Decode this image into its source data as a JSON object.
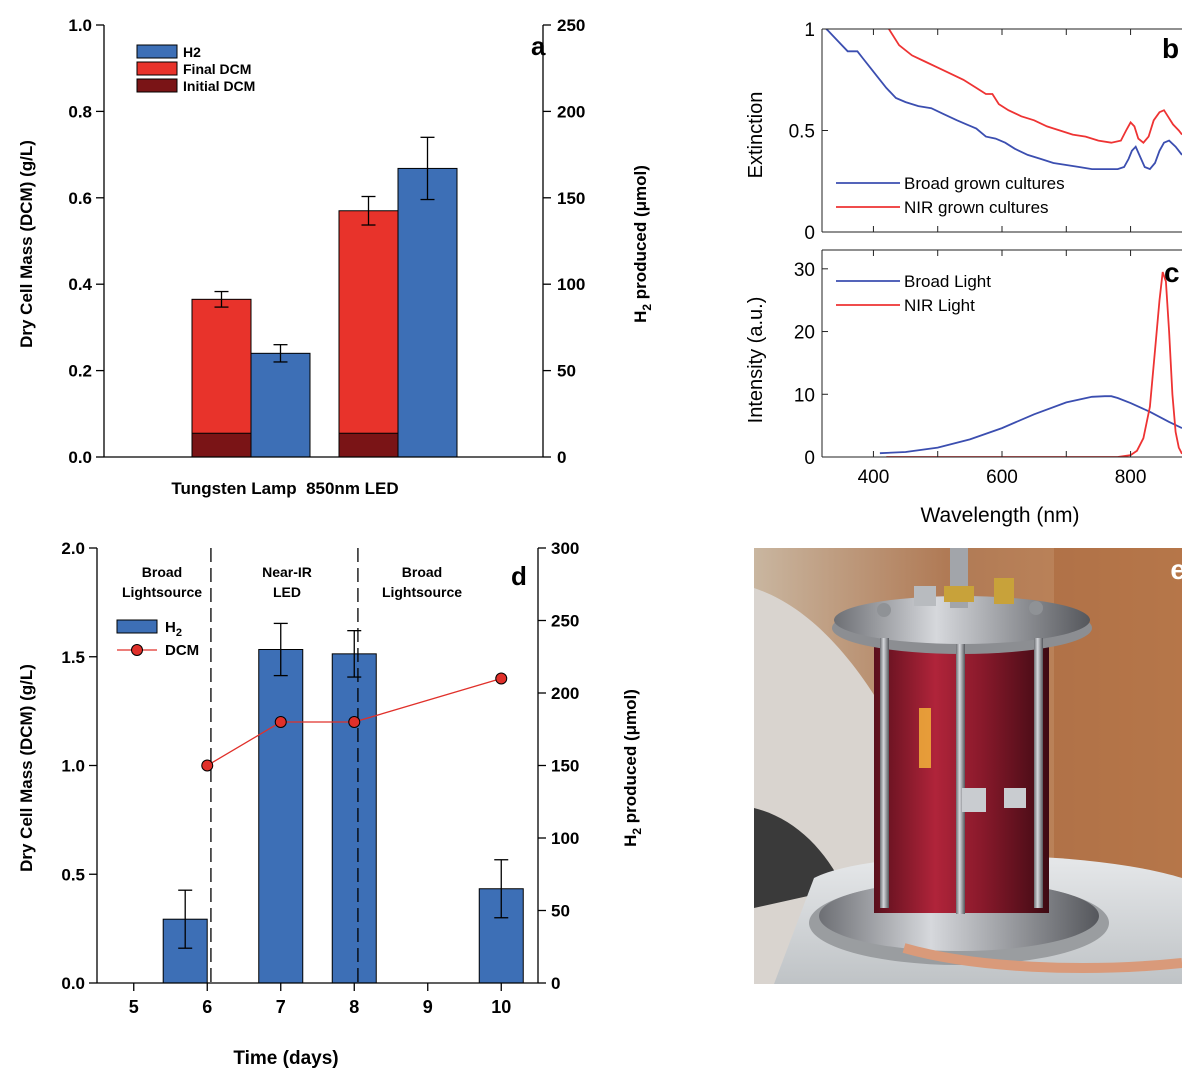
{
  "colors": {
    "h2_blue": "#3d6fb6",
    "final_dcm_red": "#e8332b",
    "initial_dcm_darkred": "#7a1416",
    "line_blue": "#3b4eb0",
    "line_red": "#ee3333",
    "dcm_marker": "#e0302a"
  },
  "chart_data": [
    {
      "panel": "a",
      "type": "bar",
      "categories": [
        "Tungsten Lamp",
        "850nm LED"
      ],
      "xlabel": "Tungsten Lamp  850nm LED",
      "ylabel": "Dry Cell Mass (DCM) (g/L)",
      "ylabel2_main": "H",
      "ylabel2_sub": "2",
      "ylabel2_rest": " produced (μmol)",
      "ylim": [
        0,
        1.0
      ],
      "y2lim": [
        0,
        250
      ],
      "yticks": [
        "0.0",
        "0.2",
        "0.4",
        "0.6",
        "0.8",
        "1.0"
      ],
      "y2ticks": [
        "0",
        "50",
        "100",
        "150",
        "200",
        "250"
      ],
      "legend": [
        "H2",
        "Final DCM",
        "Initial DCM"
      ],
      "series": [
        {
          "name": "Initial DCM",
          "axis": "left",
          "values": [
            0.055,
            0.055
          ]
        },
        {
          "name": "Final DCM",
          "axis": "left",
          "values": [
            0.365,
            0.57
          ],
          "errors": [
            0.018,
            0.033
          ]
        },
        {
          "name": "H2",
          "axis": "right",
          "values": [
            60,
            167
          ],
          "errors": [
            5,
            18
          ]
        }
      ]
    },
    {
      "panel": "b",
      "type": "line",
      "xlim": [
        320,
        880
      ],
      "ylim": [
        0,
        1
      ],
      "ylabel": "Extinction",
      "yticks": [
        "0",
        "0.5",
        "1"
      ],
      "legend": [
        "Broad grown cultures",
        "NIR grown cultures"
      ],
      "series": [
        {
          "name": "Broad grown cultures",
          "x": [
            320,
            330,
            345,
            360,
            375,
            385,
            395,
            405,
            420,
            435,
            450,
            470,
            490,
            510,
            530,
            545,
            560,
            575,
            590,
            605,
            620,
            640,
            660,
            680,
            700,
            720,
            740,
            760,
            780,
            790,
            797,
            802,
            808,
            815,
            822,
            830,
            838,
            845,
            852,
            860,
            870,
            880
          ],
          "y": [
            1.02,
            0.99,
            0.94,
            0.89,
            0.89,
            0.85,
            0.81,
            0.77,
            0.71,
            0.66,
            0.64,
            0.62,
            0.61,
            0.58,
            0.55,
            0.53,
            0.51,
            0.47,
            0.46,
            0.44,
            0.41,
            0.38,
            0.36,
            0.34,
            0.33,
            0.32,
            0.31,
            0.31,
            0.31,
            0.32,
            0.36,
            0.4,
            0.42,
            0.37,
            0.32,
            0.31,
            0.34,
            0.4,
            0.44,
            0.45,
            0.42,
            0.38
          ]
        },
        {
          "name": "NIR grown cultures",
          "x": [
            420,
            440,
            460,
            480,
            500,
            520,
            540,
            560,
            575,
            585,
            595,
            610,
            630,
            650,
            670,
            690,
            710,
            730,
            750,
            770,
            785,
            793,
            800,
            806,
            812,
            820,
            828,
            836,
            845,
            852,
            858,
            866,
            875,
            880
          ],
          "y": [
            1.02,
            0.92,
            0.87,
            0.84,
            0.81,
            0.78,
            0.75,
            0.71,
            0.68,
            0.68,
            0.63,
            0.6,
            0.57,
            0.55,
            0.52,
            0.5,
            0.48,
            0.47,
            0.45,
            0.44,
            0.45,
            0.5,
            0.54,
            0.52,
            0.46,
            0.44,
            0.47,
            0.55,
            0.59,
            0.6,
            0.57,
            0.53,
            0.5,
            0.48
          ]
        }
      ]
    },
    {
      "panel": "c",
      "type": "line",
      "xlim": [
        320,
        880
      ],
      "ylim": [
        0,
        33
      ],
      "xlabel": "Wavelength (nm)",
      "ylabel": "Intensity (a.u.)",
      "xticks": [
        "400",
        "600",
        "800"
      ],
      "yticks": [
        "0",
        "10",
        "20",
        "30"
      ],
      "legend": [
        "Broad Light",
        "NIR Light"
      ],
      "series": [
        {
          "name": "Broad Light",
          "x": [
            410,
            450,
            500,
            550,
            600,
            650,
            700,
            740,
            760,
            770,
            780,
            800,
            830,
            860,
            880
          ],
          "y": [
            0.6,
            0.8,
            1.5,
            2.8,
            4.6,
            6.8,
            8.7,
            9.6,
            9.7,
            9.7,
            9.4,
            8.6,
            7.2,
            5.6,
            4.6
          ]
        },
        {
          "name": "NIR Light",
          "x": [
            420,
            700,
            780,
            800,
            810,
            820,
            830,
            838,
            845,
            850,
            855,
            860,
            865,
            870,
            875,
            880
          ],
          "y": [
            0,
            0,
            0,
            0.3,
            1,
            3,
            8,
            17,
            25,
            29.5,
            28,
            20,
            10,
            4,
            1.5,
            0.5
          ]
        }
      ]
    },
    {
      "panel": "d",
      "type": "bar",
      "xlabel": "Time (days)",
      "ylabel": "Dry Cell Mass (DCM) (g/L)",
      "ylabel2_main": "H",
      "ylabel2_sub": "2",
      "ylabel2_rest": " produced (μmol)",
      "xlim": [
        4.5,
        10.5
      ],
      "ylim": [
        0,
        2.0
      ],
      "y2lim": [
        0,
        300
      ],
      "xticks": [
        "5",
        "6",
        "7",
        "8",
        "9",
        "10"
      ],
      "yticks": [
        "0.0",
        "0.5",
        "1.0",
        "1.5",
        "2.0"
      ],
      "y2ticks": [
        "0",
        "50",
        "100",
        "150",
        "200",
        "250",
        "300"
      ],
      "legend_h2_main": "H",
      "legend_h2_sub": "2",
      "legend_dcm": "DCM",
      "regions": [
        {
          "line1": "Broad",
          "line2": "Lightsource"
        },
        {
          "line1": "Near-IR",
          "line2": "LED"
        },
        {
          "line1": "Broad",
          "line2": "Lightsource"
        }
      ],
      "dividers_x": [
        6.05,
        8.05
      ],
      "series": [
        {
          "name": "H2",
          "axis": "right",
          "x": [
            5.7,
            7.0,
            8.0,
            10.0
          ],
          "values": [
            44,
            230,
            227,
            65
          ],
          "errors": [
            20,
            18,
            16,
            20
          ]
        },
        {
          "name": "DCM",
          "axis": "left",
          "x": [
            6.0,
            7.0,
            8.0,
            10.0
          ],
          "values": [
            1.0,
            1.2,
            1.2,
            1.4
          ]
        }
      ]
    }
  ],
  "panel_letters": {
    "a": "a",
    "b": "b",
    "c": "c",
    "d": "d",
    "e": "e"
  },
  "photo": {
    "description_icon": "photobioreactor-photo"
  }
}
